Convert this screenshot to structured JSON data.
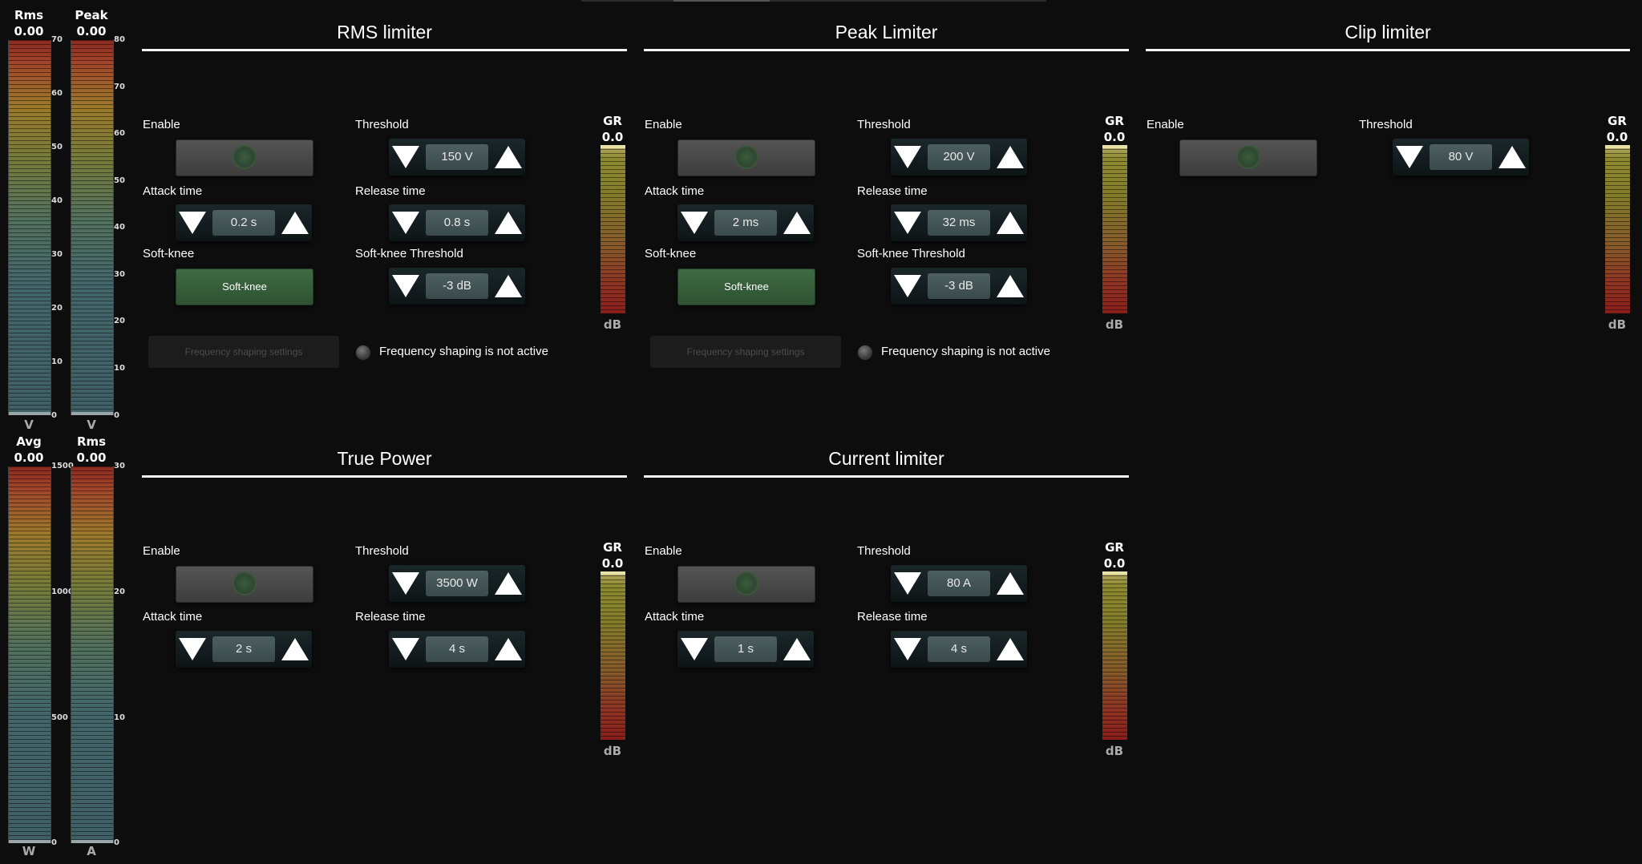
{
  "meters": [
    {
      "name": "Rms",
      "value": "0.00",
      "unit": "V",
      "ticks": [
        "70",
        "60",
        "50",
        "40",
        "30",
        "20",
        "10",
        "0"
      ]
    },
    {
      "name": "Peak",
      "value": "0.00",
      "unit": "V",
      "ticks": [
        "80",
        "70",
        "60",
        "50",
        "40",
        "30",
        "20",
        "10",
        "0"
      ]
    },
    {
      "name": "Avg",
      "value": "0.00",
      "unit": "W",
      "ticks": [
        "1500",
        "1000",
        "500",
        "0"
      ]
    },
    {
      "name": "Rms",
      "value": "0.00",
      "unit": "A",
      "ticks": [
        "30",
        "20",
        "10",
        "0"
      ]
    }
  ],
  "rms_limiter": {
    "title": "RMS limiter",
    "enable_label": "Enable",
    "threshold_label": "Threshold",
    "threshold_value": "150 V",
    "attack_label": "Attack time",
    "attack_value": "0.2 s",
    "release_label": "Release time",
    "release_value": "0.8 s",
    "softknee_label": "Soft-knee",
    "softknee_button": "Soft-knee",
    "sk_threshold_label": "Soft-knee Threshold",
    "sk_threshold_value": "-3 dB",
    "freq_button": "Frequency shaping settings",
    "freq_status": "Frequency shaping is not active",
    "gr_label": "GR",
    "gr_value": "0.0",
    "gr_unit": "dB"
  },
  "peak_limiter": {
    "title": "Peak Limiter",
    "enable_label": "Enable",
    "threshold_label": "Threshold",
    "threshold_value": "200 V",
    "attack_label": "Attack time",
    "attack_value": "2 ms",
    "release_label": "Release time",
    "release_value": "32 ms",
    "softknee_label": "Soft-knee",
    "softknee_button": "Soft-knee",
    "sk_threshold_label": "Soft-knee Threshold",
    "sk_threshold_value": "-3 dB",
    "freq_button": "Frequency shaping settings",
    "freq_status": "Frequency shaping is not active",
    "gr_label": "GR",
    "gr_value": "0.0",
    "gr_unit": "dB"
  },
  "clip_limiter": {
    "title": "Clip limiter",
    "enable_label": "Enable",
    "threshold_label": "Threshold",
    "threshold_value": "80 V",
    "gr_label": "GR",
    "gr_value": "0.0",
    "gr_unit": "dB"
  },
  "true_power": {
    "title": "True Power",
    "enable_label": "Enable",
    "threshold_label": "Threshold",
    "threshold_value": "3500 W",
    "attack_label": "Attack time",
    "attack_value": "2 s",
    "release_label": "Release time",
    "release_value": "4 s",
    "gr_label": "GR",
    "gr_value": "0.0",
    "gr_unit": "dB"
  },
  "current_limiter": {
    "title": "Current limiter",
    "enable_label": "Enable",
    "threshold_label": "Threshold",
    "threshold_value": "80 A",
    "attack_label": "Attack time",
    "attack_value": "1 s",
    "release_label": "Release time",
    "release_value": "4 s",
    "gr_label": "GR",
    "gr_value": "0.0",
    "gr_unit": "dB"
  }
}
